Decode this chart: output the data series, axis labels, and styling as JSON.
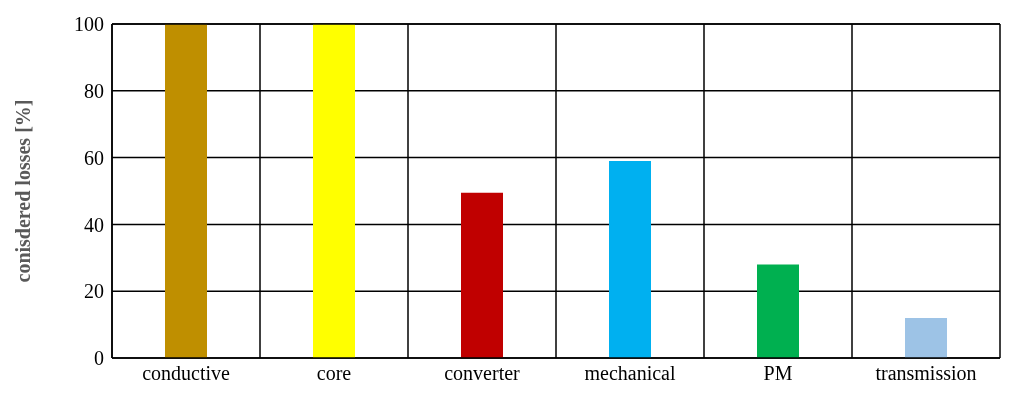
{
  "chart_data": {
    "type": "bar",
    "ylabel": "conisdered losses [%]",
    "categories": [
      "conductive",
      "core",
      "converter",
      "mechanical",
      "PM",
      "transmission"
    ],
    "values": [
      100,
      100,
      49.5,
      59,
      28,
      12
    ],
    "colors": [
      "#bf8f00",
      "#ffff00",
      "#c00000",
      "#00b0f0",
      "#00b050",
      "#9dc3e6"
    ],
    "ylim": [
      0,
      100
    ],
    "yticks": [
      0,
      20,
      40,
      60,
      80,
      100
    ],
    "grid": true
  }
}
